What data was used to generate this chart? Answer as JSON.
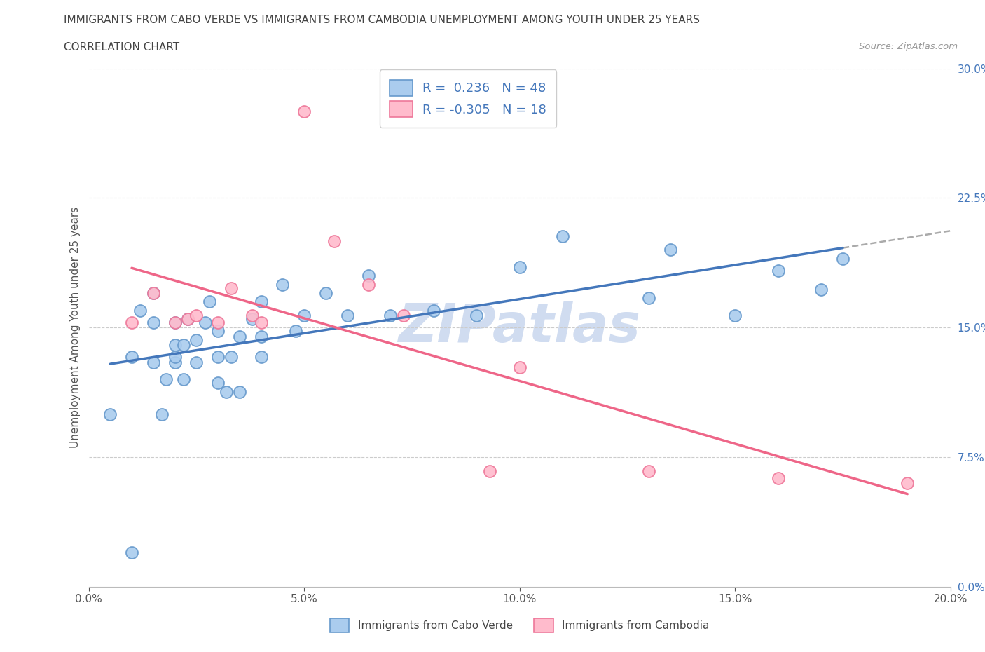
{
  "title_line1": "IMMIGRANTS FROM CABO VERDE VS IMMIGRANTS FROM CAMBODIA UNEMPLOYMENT AMONG YOUTH UNDER 25 YEARS",
  "title_line2": "CORRELATION CHART",
  "source_text": "Source: ZipAtlas.com",
  "ylabel": "Unemployment Among Youth under 25 years",
  "legend_label1": "Immigrants from Cabo Verde",
  "legend_label2": "Immigrants from Cambodia",
  "R1": 0.236,
  "N1": 48,
  "R2": -0.305,
  "N2": 18,
  "xlim": [
    0.0,
    0.2
  ],
  "ylim": [
    0.0,
    0.3
  ],
  "xticks": [
    0.0,
    0.05,
    0.1,
    0.15,
    0.2
  ],
  "yticks": [
    0.0,
    0.075,
    0.15,
    0.225,
    0.3
  ],
  "ytick_labels": [
    "0.0%",
    "7.5%",
    "15.0%",
    "22.5%",
    "30.0%"
  ],
  "xtick_labels": [
    "0.0%",
    "5.0%",
    "10.0%",
    "15.0%",
    "20.0%"
  ],
  "color_blue_fill": "#AACCEE",
  "color_blue_edge": "#6699CC",
  "color_pink_fill": "#FFBBCC",
  "color_pink_edge": "#EE7799",
  "color_blue_line": "#4477BB",
  "color_pink_line": "#EE6688",
  "color_dashed": "#AAAAAA",
  "cabo_verde_x": [
    0.005,
    0.01,
    0.01,
    0.012,
    0.015,
    0.015,
    0.015,
    0.017,
    0.018,
    0.02,
    0.02,
    0.02,
    0.02,
    0.022,
    0.022,
    0.023,
    0.025,
    0.025,
    0.027,
    0.028,
    0.03,
    0.03,
    0.03,
    0.032,
    0.033,
    0.035,
    0.035,
    0.038,
    0.04,
    0.04,
    0.04,
    0.045,
    0.048,
    0.05,
    0.055,
    0.06,
    0.065,
    0.07,
    0.08,
    0.09,
    0.1,
    0.11,
    0.13,
    0.135,
    0.15,
    0.16,
    0.17,
    0.175
  ],
  "cabo_verde_y": [
    0.1,
    0.02,
    0.133,
    0.16,
    0.17,
    0.13,
    0.153,
    0.1,
    0.12,
    0.13,
    0.14,
    0.133,
    0.153,
    0.12,
    0.14,
    0.155,
    0.13,
    0.143,
    0.153,
    0.165,
    0.118,
    0.133,
    0.148,
    0.113,
    0.133,
    0.113,
    0.145,
    0.155,
    0.133,
    0.145,
    0.165,
    0.175,
    0.148,
    0.157,
    0.17,
    0.157,
    0.18,
    0.157,
    0.16,
    0.157,
    0.185,
    0.203,
    0.167,
    0.195,
    0.157,
    0.183,
    0.172,
    0.19
  ],
  "cambodia_x": [
    0.01,
    0.015,
    0.02,
    0.023,
    0.025,
    0.03,
    0.033,
    0.038,
    0.04,
    0.05,
    0.057,
    0.065,
    0.073,
    0.093,
    0.1,
    0.13,
    0.16,
    0.19
  ],
  "cambodia_y": [
    0.153,
    0.17,
    0.153,
    0.155,
    0.157,
    0.153,
    0.173,
    0.157,
    0.153,
    0.275,
    0.2,
    0.175,
    0.157,
    0.067,
    0.127,
    0.067,
    0.063,
    0.06
  ],
  "watermark_text": "ZIPatlas",
  "watermark_color": "#D0DCF0",
  "watermark_fontsize": 55,
  "bg_color": "#FFFFFF"
}
